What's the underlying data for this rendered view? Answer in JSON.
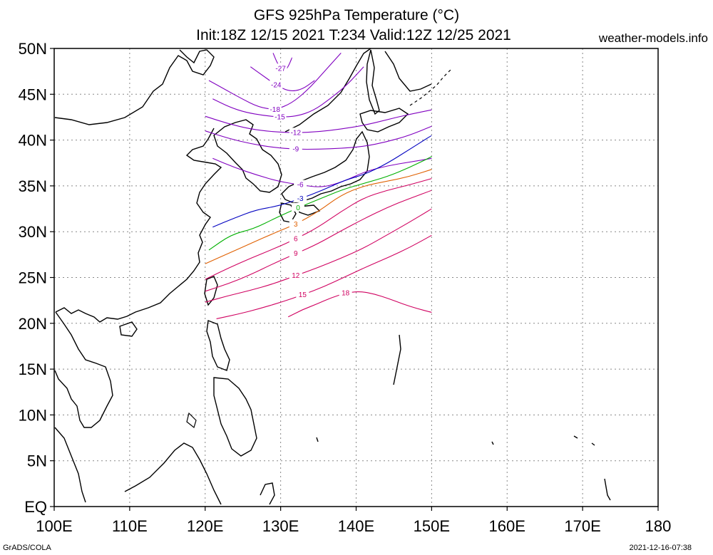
{
  "title": {
    "line1": "GFS 925hPa Temperature (°C)",
    "line2": "Init:18Z 12/15 2021 T:234 Valid:12Z 12/25 2021"
  },
  "credit": "weather-models.info",
  "footer": {
    "left": "GrADS/COLA",
    "right": "2021-12-16-07:38"
  },
  "map": {
    "lon_range": [
      100,
      180
    ],
    "lat_range": [
      0,
      50
    ],
    "data_extent": {
      "lon": [
        120,
        150
      ],
      "lat": [
        20,
        50
      ]
    },
    "x_ticks": [
      "100E",
      "110E",
      "120E",
      "130E",
      "140E",
      "150E",
      "160E",
      "170E",
      "180"
    ],
    "y_ticks": [
      "EQ",
      "5N",
      "10N",
      "15N",
      "20N",
      "25N",
      "30N",
      "35N",
      "40N",
      "45N",
      "50N"
    ],
    "grid": "dotted"
  },
  "contours": [
    {
      "value": -27,
      "label": "-27",
      "color": "#8000c0",
      "lat": [
        49.5,
        48.5,
        47.8,
        47.5,
        48,
        49
      ],
      "lon_start": 129,
      "lon_end": 131.5
    },
    {
      "value": -24,
      "label": "-24",
      "color": "#8000c0",
      "lat": [
        48,
        47,
        46,
        45.3,
        45.5,
        46.5
      ],
      "lon_start": 126,
      "lon_end": 134.5
    },
    {
      "value": -18,
      "label": "-18",
      "color": "#8000c0",
      "lat": [
        46.5,
        45.5,
        44.5,
        43.6,
        43.3,
        44,
        45.5,
        47.5,
        49.5
      ],
      "lon_start": 120.5,
      "lon_end": 138
    },
    {
      "value": -15,
      "label": "-15",
      "color": "#8000c0",
      "lat": [
        44.5,
        43.6,
        43,
        42.7,
        42.5,
        42.6,
        43.2,
        44.5,
        46,
        48
      ],
      "lon_start": 121,
      "lon_end": 141
    },
    {
      "value": -12,
      "label": "-12",
      "color": "#8000c0",
      "lat": [
        42.6,
        41.8,
        41.2,
        40.9,
        40.8,
        40.9,
        41.2,
        41.6,
        42.2,
        42.8,
        43.3
      ],
      "lon_start": 120,
      "lon_end": 150
    },
    {
      "value": -9,
      "label": "-9",
      "color": "#8000c0",
      "lat": [
        41,
        40.2,
        39.6,
        39.2,
        39,
        39,
        39.1,
        39.3,
        39.8,
        40.5,
        41.5
      ],
      "lon_start": 120,
      "lon_end": 150
    },
    {
      "value": -6,
      "label": "-6",
      "color": "#8000c0",
      "lat": [
        38,
        37,
        36.2,
        35.5,
        35.1,
        34.8,
        35.5,
        36.6,
        37.2,
        37.6,
        38
      ],
      "lon_start": 121,
      "lon_end": 150
    },
    {
      "value": -3,
      "label": "-3",
      "color": "#0000c0",
      "lat": [
        30.5,
        31.5,
        32.4,
        32.8,
        33.6,
        34.5,
        35.6,
        36.3,
        37.5,
        39,
        40.5
      ],
      "lon_start": 121,
      "lon_end": 150
    },
    {
      "value": 0,
      "label": "0",
      "color": "#00b000",
      "lat": [
        28,
        29.7,
        30.3,
        31.5,
        32.6,
        33.6,
        34.6,
        35.3,
        36,
        37,
        38.2
      ],
      "lon_start": 120.5,
      "lon_end": 150
    },
    {
      "value": 3,
      "label": "3",
      "color": "#e06000",
      "lat": [
        26.5,
        27.6,
        28.7,
        29.8,
        30.8,
        32.2,
        34,
        35,
        35.5,
        36,
        36.8
      ],
      "lon_start": 120,
      "lon_end": 150
    },
    {
      "value": 6,
      "label": "6",
      "color": "#d00060",
      "lat": [
        24.8,
        26,
        27.1,
        28.1,
        29.2,
        30.5,
        32.2,
        33.7,
        34.5,
        35.1,
        35.8
      ],
      "lon_start": 120,
      "lon_end": 150
    },
    {
      "value": 9,
      "label": "9",
      "color": "#d00060",
      "lat": [
        23.5,
        24.3,
        25.3,
        26.5,
        27.6,
        28.7,
        30.1,
        31.4,
        32.6,
        33.6,
        34.5
      ],
      "lon_start": 120,
      "lon_end": 150
    },
    {
      "value": 12,
      "label": "12",
      "color": "#d00060",
      "lat": [
        22.3,
        23,
        23.6,
        24.3,
        25.2,
        26.1,
        27.1,
        28.2,
        29.6,
        31,
        32.5
      ],
      "lon_start": 120,
      "lon_end": 150
    },
    {
      "value": 15,
      "label": "15",
      "color": "#d00060",
      "lat": [
        20.5,
        21,
        21.6,
        22.3,
        23.1,
        24,
        25.1,
        26.2,
        27.2,
        28.3,
        29.6
      ],
      "lon_start": 121.5,
      "lon_end": 150
    },
    {
      "value": 18,
      "label": "18",
      "color": "#d00060",
      "lat": [
        20.7,
        21.5,
        22.1,
        22.8,
        23.3,
        23.5,
        23.2,
        22.7,
        22.1,
        21.6,
        21.2
      ],
      "lon_start": 131,
      "lon_end": 150
    }
  ]
}
